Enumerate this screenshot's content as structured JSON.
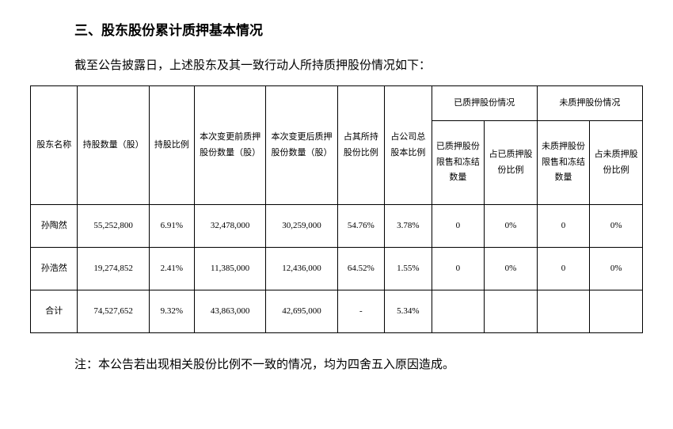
{
  "section_title": "三、股东股份累计质押基本情况",
  "intro_text": "截至公告披露日，上述股东及其一致行动人所持质押股份情况如下：",
  "table": {
    "headers": {
      "name": "股东名称",
      "shares": "持股数量（股）",
      "ratio": "持股比例",
      "before": "本次变更前质押股份数量（股）",
      "after": "本次变更后质押股份数量（股）",
      "hold_ratio": "占其所持股份比例",
      "total_ratio": "占公司总股本比例",
      "pledged_group": "已质押股份情况",
      "pledged_limit": "已质押股份限售和冻结数量",
      "pledged_ratio": "占已质押股份比例",
      "unpledged_group": "未质押股份情况",
      "unpledged_limit": "未质押股份限售和冻结数量",
      "unpledged_ratio": "占未质押股份比例"
    },
    "rows": [
      {
        "name": "孙陶然",
        "shares": "55,252,800",
        "ratio": "6.91%",
        "before": "32,478,000",
        "after": "30,259,000",
        "hold_ratio": "54.76%",
        "total_ratio": "3.78%",
        "pledged_limit": "0",
        "pledged_ratio": "0%",
        "unpledged_limit": "0",
        "unpledged_ratio": "0%"
      },
      {
        "name": "孙浩然",
        "shares": "19,274,852",
        "ratio": "2.41%",
        "before": "11,385,000",
        "after": "12,436,000",
        "hold_ratio": "64.52%",
        "total_ratio": "1.55%",
        "pledged_limit": "0",
        "pledged_ratio": "0%",
        "unpledged_limit": "0",
        "unpledged_ratio": "0%"
      },
      {
        "name": "合计",
        "shares": "74,527,652",
        "ratio": "9.32%",
        "before": "43,863,000",
        "after": "42,695,000",
        "hold_ratio": "-",
        "total_ratio": "5.34%",
        "pledged_limit": "",
        "pledged_ratio": "",
        "unpledged_limit": "",
        "unpledged_ratio": ""
      }
    ]
  },
  "note_text": "注：本公告若出现相关股份比例不一致的情况，均为四舍五入原因造成。"
}
